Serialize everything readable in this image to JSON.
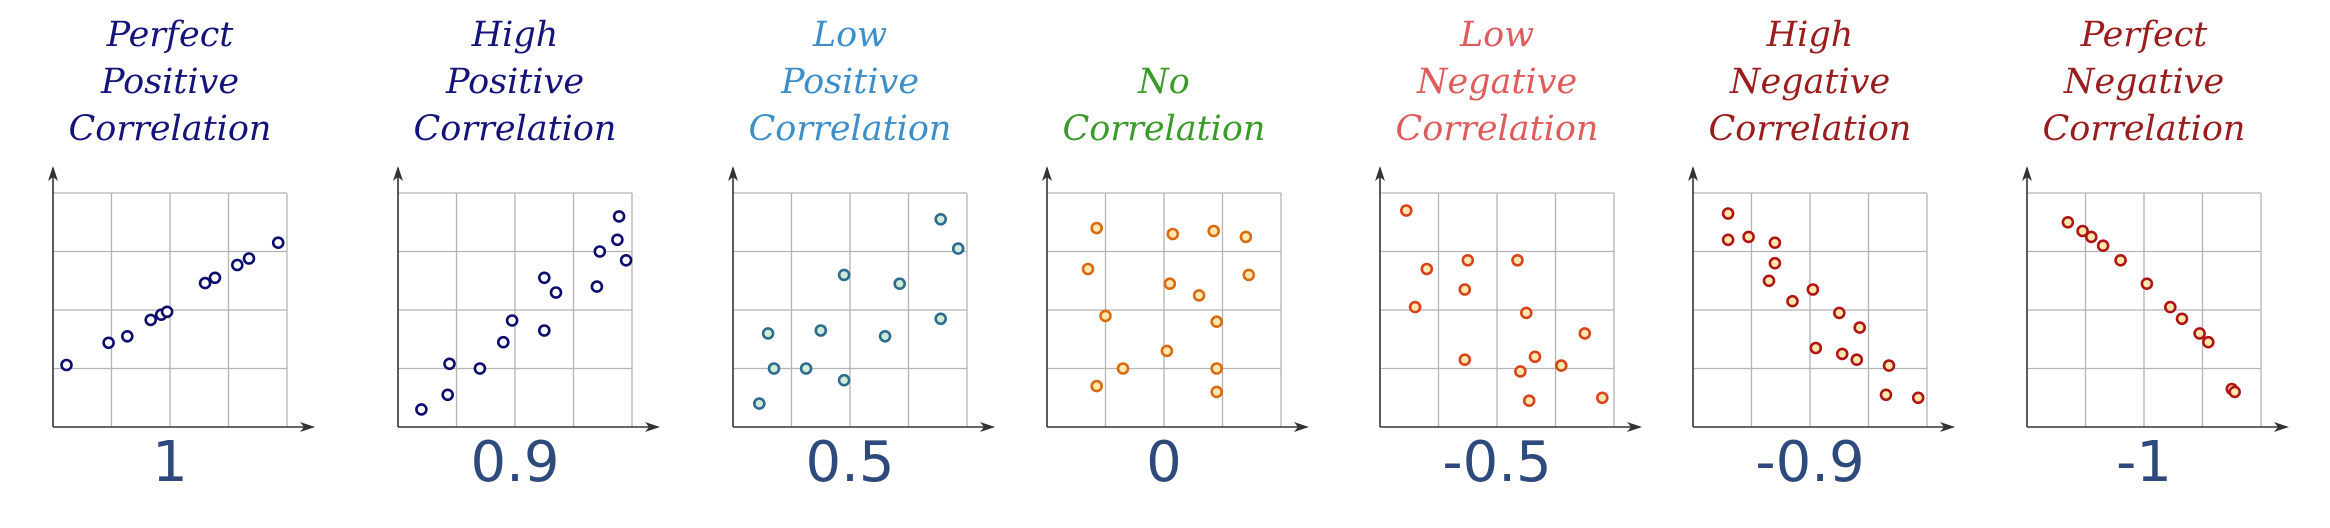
{
  "colors": {
    "grid": "#b3b3b3",
    "axis": "#333333",
    "value": "#2e4a7d"
  },
  "chart_data": [
    {
      "type": "scatter",
      "title": "Perfect Positive Correlation",
      "title_lines": [
        "Perfect",
        "Positive",
        "Correlation"
      ],
      "value_label": "1",
      "title_color": "#13137a",
      "marker_stroke": "#0c0c6e",
      "marker_fill": "#ffffff",
      "xlim": [
        0,
        4
      ],
      "ylim": [
        0,
        4
      ],
      "grid": true,
      "xlabel": "",
      "ylabel": "",
      "points": [
        [
          0.23,
          1.06
        ],
        [
          0.95,
          1.44
        ],
        [
          1.27,
          1.55
        ],
        [
          1.67,
          1.83
        ],
        [
          1.85,
          1.92
        ],
        [
          1.95,
          1.97
        ],
        [
          2.6,
          2.46
        ],
        [
          2.77,
          2.55
        ],
        [
          3.15,
          2.77
        ],
        [
          3.35,
          2.88
        ],
        [
          3.85,
          3.15
        ]
      ]
    },
    {
      "type": "scatter",
      "title": "High Positive Correlation",
      "title_lines": [
        "High",
        "Positive",
        "Correlation"
      ],
      "value_label": "0.9",
      "title_color": "#13137a",
      "marker_stroke": "#0c0c6e",
      "marker_fill": "#ffffff",
      "xlim": [
        0,
        4
      ],
      "ylim": [
        0,
        4
      ],
      "grid": true,
      "xlabel": "",
      "ylabel": "",
      "points": [
        [
          0.4,
          0.3
        ],
        [
          0.85,
          0.55
        ],
        [
          0.88,
          1.08
        ],
        [
          1.4,
          1.0
        ],
        [
          1.8,
          1.45
        ],
        [
          1.95,
          1.82
        ],
        [
          2.5,
          1.65
        ],
        [
          2.5,
          2.55
        ],
        [
          2.7,
          2.3
        ],
        [
          3.4,
          2.4
        ],
        [
          3.45,
          3.0
        ],
        [
          3.75,
          3.2
        ],
        [
          3.78,
          3.6
        ],
        [
          3.9,
          2.85
        ]
      ]
    },
    {
      "type": "scatter",
      "title": "Low Positive Correlation",
      "title_lines": [
        "Low",
        "Positive",
        "Correlation"
      ],
      "value_label": "0.5",
      "title_color": "#3d8ec9",
      "marker_stroke": "#2c6c8c",
      "marker_fill": "#d0ecd8",
      "xlim": [
        0,
        4
      ],
      "ylim": [
        0,
        4
      ],
      "grid": true,
      "xlabel": "",
      "ylabel": "",
      "points": [
        [
          0.45,
          0.4
        ],
        [
          0.6,
          1.6
        ],
        [
          0.7,
          1.0
        ],
        [
          1.25,
          1.0
        ],
        [
          1.5,
          1.65
        ],
        [
          1.9,
          2.6
        ],
        [
          1.9,
          0.8
        ],
        [
          2.6,
          1.55
        ],
        [
          2.85,
          2.45
        ],
        [
          3.55,
          1.85
        ],
        [
          3.55,
          3.55
        ],
        [
          3.85,
          3.05
        ]
      ]
    },
    {
      "type": "scatter",
      "title": "No Correlation",
      "title_lines": [
        "No",
        "Correlation"
      ],
      "value_label": "0",
      "title_color": "#3a9a2a",
      "marker_stroke": "#d96a10",
      "marker_fill": "#fde9b0",
      "xlim": [
        0,
        4
      ],
      "ylim": [
        0,
        4
      ],
      "grid": true,
      "xlabel": "",
      "ylabel": "",
      "points": [
        [
          0.7,
          2.7
        ],
        [
          0.85,
          3.4
        ],
        [
          0.85,
          0.7
        ],
        [
          1.0,
          1.9
        ],
        [
          1.3,
          1.0
        ],
        [
          2.05,
          1.3
        ],
        [
          2.1,
          2.45
        ],
        [
          2.15,
          3.3
        ],
        [
          2.6,
          2.25
        ],
        [
          2.85,
          3.35
        ],
        [
          2.9,
          1.8
        ],
        [
          2.9,
          1.0
        ],
        [
          2.9,
          0.6
        ],
        [
          3.4,
          3.25
        ],
        [
          3.45,
          2.6
        ]
      ]
    },
    {
      "type": "scatter",
      "title": "Low Negative Correlation",
      "title_lines": [
        "Low",
        "Negative",
        "Correlation"
      ],
      "value_label": "-0.5",
      "title_color": "#e05c5c",
      "marker_stroke": "#d9421a",
      "marker_fill": "#fde9b0",
      "xlim": [
        0,
        4
      ],
      "ylim": [
        0,
        4
      ],
      "grid": true,
      "xlabel": "",
      "ylabel": "",
      "points": [
        [
          0.45,
          3.7
        ],
        [
          0.6,
          2.05
        ],
        [
          0.8,
          2.7
        ],
        [
          1.45,
          1.15
        ],
        [
          1.45,
          2.35
        ],
        [
          1.5,
          2.85
        ],
        [
          2.35,
          2.85
        ],
        [
          2.4,
          0.95
        ],
        [
          2.5,
          1.95
        ],
        [
          2.55,
          0.45
        ],
        [
          2.65,
          1.2
        ],
        [
          3.1,
          1.05
        ],
        [
          3.5,
          1.6
        ],
        [
          3.8,
          0.5
        ]
      ]
    },
    {
      "type": "scatter",
      "title": "High Negative Correlation",
      "title_lines": [
        "High",
        "Negative",
        "Correlation"
      ],
      "value_label": "-0.9",
      "title_color": "#9a1c1c",
      "marker_stroke": "#b01414",
      "marker_fill": "#fde9b0",
      "xlim": [
        0,
        4
      ],
      "ylim": [
        0,
        4
      ],
      "grid": true,
      "xlabel": "",
      "ylabel": "",
      "points": [
        [
          0.6,
          3.65
        ],
        [
          0.6,
          3.2
        ],
        [
          0.95,
          3.25
        ],
        [
          1.3,
          2.5
        ],
        [
          1.4,
          2.8
        ],
        [
          1.4,
          3.15
        ],
        [
          1.7,
          2.15
        ],
        [
          2.05,
          2.35
        ],
        [
          2.1,
          1.35
        ],
        [
          2.5,
          1.95
        ],
        [
          2.55,
          1.25
        ],
        [
          2.8,
          1.15
        ],
        [
          2.85,
          1.7
        ],
        [
          3.3,
          0.55
        ],
        [
          3.35,
          1.05
        ],
        [
          3.85,
          0.5
        ]
      ]
    },
    {
      "type": "scatter",
      "title": "Perfect Negative Correlation",
      "title_lines": [
        "Perfect",
        "Negative",
        "Correlation"
      ],
      "value_label": "-1",
      "title_color": "#9a1c1c",
      "marker_stroke": "#b01414",
      "marker_fill": "#fde9b0",
      "xlim": [
        0,
        4
      ],
      "ylim": [
        0,
        4
      ],
      "grid": true,
      "xlabel": "",
      "ylabel": "",
      "points": [
        [
          0.7,
          3.5
        ],
        [
          0.95,
          3.35
        ],
        [
          1.1,
          3.25
        ],
        [
          1.3,
          3.1
        ],
        [
          1.6,
          2.85
        ],
        [
          2.05,
          2.45
        ],
        [
          2.45,
          2.05
        ],
        [
          2.65,
          1.85
        ],
        [
          2.95,
          1.6
        ],
        [
          3.1,
          1.45
        ],
        [
          3.5,
          0.65
        ],
        [
          3.55,
          0.6
        ]
      ]
    }
  ]
}
